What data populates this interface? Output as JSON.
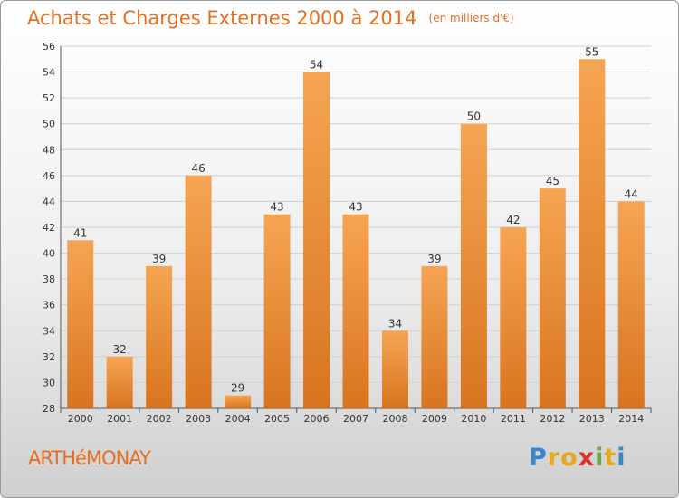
{
  "title": "Achats et Charges Externes 2000 à 2014",
  "unit_label": "(en milliers d'€)",
  "city": "ARTHéMONAY",
  "logo": {
    "letters": [
      "P",
      "r",
      "o",
      "x",
      "i",
      "t",
      "i"
    ],
    "colors": [
      "#3a86c8",
      "#e8a81c",
      "#e8a81c",
      "#d9342b",
      "#6aa843",
      "#e8a81c",
      "#3a86c8"
    ]
  },
  "colors": {
    "bar_top": "#f6a553",
    "bar_bottom": "#d8741f",
    "accent": "#e56f22"
  },
  "chart_data": {
    "type": "bar",
    "title": "Achats et Charges Externes 2000 à 2014",
    "subtitle": "(en milliers d'€)",
    "categories": [
      "2000",
      "2001",
      "2002",
      "2003",
      "2004",
      "2005",
      "2006",
      "2007",
      "2008",
      "2009",
      "2010",
      "2011",
      "2012",
      "2013",
      "2014"
    ],
    "values": [
      41,
      32,
      39,
      46,
      29,
      43,
      54,
      43,
      34,
      39,
      50,
      42,
      45,
      55,
      44
    ],
    "ylim": [
      28,
      56
    ],
    "yticks": [
      28,
      30,
      32,
      34,
      36,
      38,
      40,
      42,
      44,
      46,
      48,
      50,
      52,
      54,
      56
    ],
    "grid": true,
    "legend": "none"
  }
}
